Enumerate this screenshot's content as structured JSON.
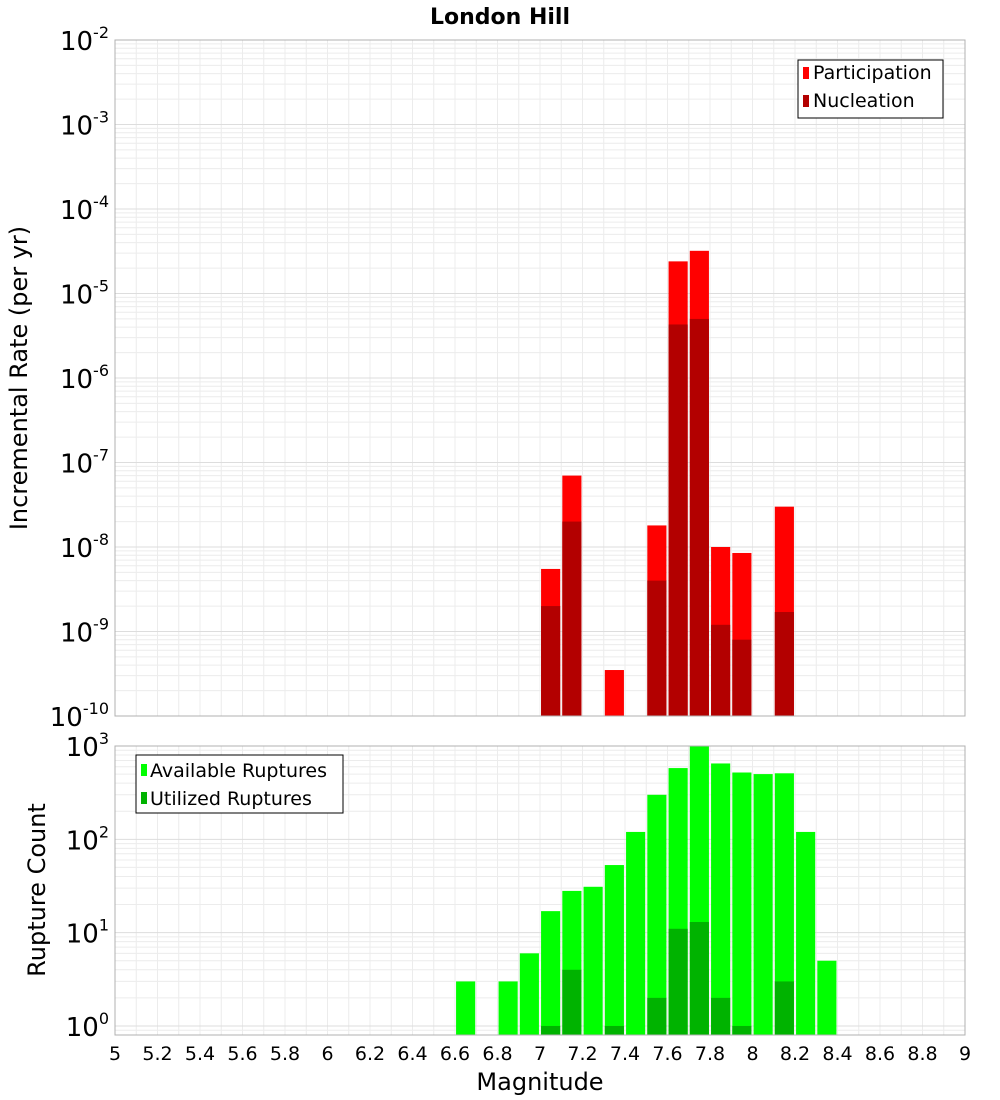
{
  "chart_data": [
    {
      "type": "bar",
      "title": "London Hill",
      "xlabel": "",
      "ylabel": "Incremental Rate (per yr)",
      "y_scale": "log",
      "ylim": [
        1e-10,
        0.01
      ],
      "xlim": [
        5,
        9
      ],
      "grid": true,
      "legend_position": "top-right",
      "y_ticks": [
        {
          "base": "10",
          "exp": "-10"
        },
        {
          "base": "10",
          "exp": "-9"
        },
        {
          "base": "10",
          "exp": "-8"
        },
        {
          "base": "10",
          "exp": "-7"
        },
        {
          "base": "10",
          "exp": "-6"
        },
        {
          "base": "10",
          "exp": "-5"
        },
        {
          "base": "10",
          "exp": "-4"
        },
        {
          "base": "10",
          "exp": "-3"
        },
        {
          "base": "10",
          "exp": "-2"
        }
      ],
      "series": [
        {
          "name": "Participation",
          "color": "#ff0000",
          "points": [
            {
              "x": 7.05,
              "y": 5.5e-09
            },
            {
              "x": 7.15,
              "y": 7e-08
            },
            {
              "x": 7.35,
              "y": 3.5e-10
            },
            {
              "x": 7.55,
              "y": 1.8e-08
            },
            {
              "x": 7.65,
              "y": 2.4e-05
            },
            {
              "x": 7.75,
              "y": 3.2e-05
            },
            {
              "x": 7.85,
              "y": 1e-08
            },
            {
              "x": 7.95,
              "y": 8.5e-09
            },
            {
              "x": 8.15,
              "y": 3e-08
            }
          ]
        },
        {
          "name": "Nucleation",
          "color": "#b30000",
          "points": [
            {
              "x": 7.05,
              "y": 2e-09
            },
            {
              "x": 7.15,
              "y": 2e-08
            },
            {
              "x": 7.55,
              "y": 4e-09
            },
            {
              "x": 7.65,
              "y": 4.3e-06
            },
            {
              "x": 7.75,
              "y": 5e-06
            },
            {
              "x": 7.85,
              "y": 1.2e-09
            },
            {
              "x": 7.95,
              "y": 8e-10
            },
            {
              "x": 8.15,
              "y": 1.7e-09
            }
          ]
        }
      ]
    },
    {
      "type": "bar",
      "title": "",
      "xlabel": "Magnitude",
      "ylabel": "Rupture Count",
      "y_scale": "log",
      "ylim": [
        0.8,
        1000
      ],
      "xlim": [
        5,
        9
      ],
      "grid": true,
      "legend_position": "top-left",
      "x_ticks": [
        "5",
        "5.2",
        "5.4",
        "5.6",
        "5.8",
        "6",
        "6.2",
        "6.4",
        "6.6",
        "6.8",
        "7",
        "7.2",
        "7.4",
        "7.6",
        "7.8",
        "8",
        "8.2",
        "8.4",
        "8.6",
        "8.8",
        "9"
      ],
      "y_ticks": [
        {
          "base": "10",
          "exp": "0"
        },
        {
          "base": "10",
          "exp": "1"
        },
        {
          "base": "10",
          "exp": "2"
        },
        {
          "base": "10",
          "exp": "3"
        }
      ],
      "series": [
        {
          "name": "Available Ruptures",
          "color": "#00ff00",
          "points": [
            {
              "x": 6.65,
              "y": 3
            },
            {
              "x": 6.85,
              "y": 3
            },
            {
              "x": 6.95,
              "y": 6
            },
            {
              "x": 7.05,
              "y": 17
            },
            {
              "x": 7.15,
              "y": 28
            },
            {
              "x": 7.25,
              "y": 31
            },
            {
              "x": 7.35,
              "y": 53
            },
            {
              "x": 7.45,
              "y": 120
            },
            {
              "x": 7.55,
              "y": 300
            },
            {
              "x": 7.65,
              "y": 580
            },
            {
              "x": 7.75,
              "y": 1000
            },
            {
              "x": 7.85,
              "y": 650
            },
            {
              "x": 7.95,
              "y": 520
            },
            {
              "x": 8.05,
              "y": 500
            },
            {
              "x": 8.15,
              "y": 510
            },
            {
              "x": 8.25,
              "y": 120
            },
            {
              "x": 8.35,
              "y": 5
            }
          ]
        },
        {
          "name": "Utilized Ruptures",
          "color": "#00b300",
          "points": [
            {
              "x": 7.05,
              "y": 1
            },
            {
              "x": 7.15,
              "y": 4
            },
            {
              "x": 7.35,
              "y": 1
            },
            {
              "x": 7.55,
              "y": 2
            },
            {
              "x": 7.65,
              "y": 11
            },
            {
              "x": 7.75,
              "y": 13
            },
            {
              "x": 7.85,
              "y": 2
            },
            {
              "x": 7.95,
              "y": 1
            },
            {
              "x": 8.15,
              "y": 3
            }
          ]
        }
      ]
    }
  ]
}
